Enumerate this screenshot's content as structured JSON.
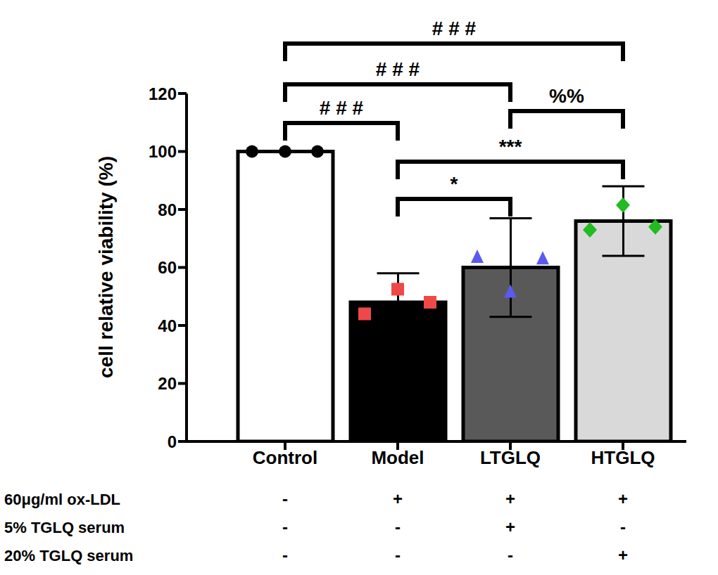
{
  "chart_data": {
    "type": "bar",
    "categories": [
      "Control",
      "Model",
      "LTGLQ",
      "HTGLQ"
    ],
    "values": [
      100,
      48,
      60,
      76
    ],
    "error": [
      0,
      10,
      17,
      12
    ],
    "colors": [
      "#ffffff",
      "#000000",
      "#595959",
      "#d9d9d9"
    ],
    "replicates": {
      "values": [
        [
          100,
          100,
          100
        ],
        [
          44,
          52.5,
          48
        ],
        [
          63.5,
          51.5,
          63
        ],
        [
          73,
          81.5,
          74
        ]
      ],
      "colors": [
        "#000000",
        "#f04848",
        "#5a5af0",
        "#22bb22"
      ],
      "markers": [
        "circle",
        "square",
        "triangle",
        "diamond"
      ]
    },
    "y_label": "cell relative viability (%)",
    "ylim": [
      0,
      120
    ],
    "yticks": [
      0,
      20,
      40,
      60,
      80,
      100,
      120
    ],
    "grid": false,
    "comparisons": [
      {
        "groups": [
          "Control",
          "Model"
        ],
        "label": "# # #"
      },
      {
        "groups": [
          "Control",
          "LTGLQ"
        ],
        "label": "# # #"
      },
      {
        "groups": [
          "Control",
          "HTGLQ"
        ],
        "label": "# # #"
      },
      {
        "groups": [
          "LTGLQ",
          "HTGLQ"
        ],
        "label": "%%"
      },
      {
        "groups": [
          "Model",
          "HTGLQ"
        ],
        "label": "***"
      },
      {
        "groups": [
          "Model",
          "LTGLQ"
        ],
        "label": "*"
      }
    ],
    "treatments": [
      {
        "label": "60μg/ml ox-LDL",
        "values": [
          "-",
          "+",
          "+",
          "+"
        ]
      },
      {
        "label": "5% TGLQ serum",
        "values": [
          "-",
          "-",
          "+",
          "-"
        ]
      },
      {
        "label": "20% TGLQ serum",
        "values": [
          "-",
          "-",
          "-",
          "+"
        ]
      }
    ]
  }
}
